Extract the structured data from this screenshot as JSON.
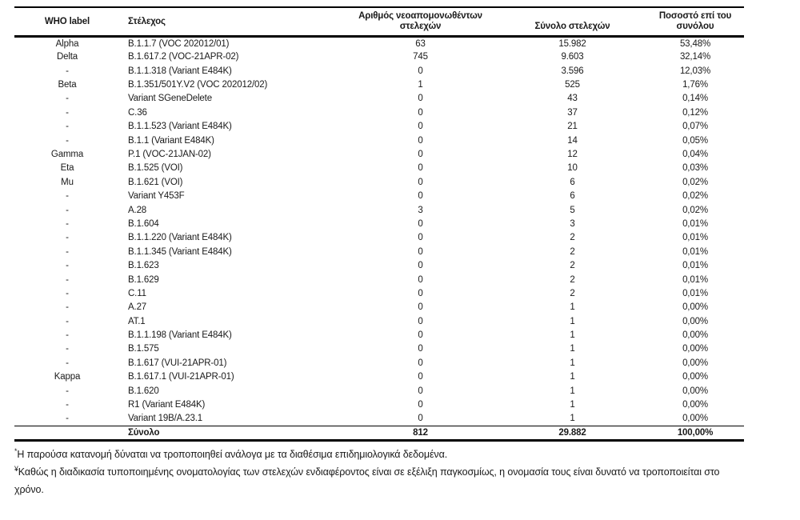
{
  "table": {
    "headers": [
      "WHO label",
      "Στέλεχος",
      "Αριθμός νεοαπομονωθέντων στελεχών",
      "Σύνολο στελεχών",
      "Ποσοστό επί του συνόλου"
    ],
    "rows": [
      [
        "Alpha",
        "B.1.1.7 (VOC 202012/01)",
        "63",
        "15.982",
        "53,48%"
      ],
      [
        "Delta",
        "B.1.617.2 (VOC-21APR-02)",
        "745",
        "9.603",
        "32,14%"
      ],
      [
        "-",
        "B.1.1.318 (Variant E484K)",
        "0",
        "3.596",
        "12,03%"
      ],
      [
        "Beta",
        "B.1.351/501Y.V2 (VOC 202012/02)",
        "1",
        "525",
        "1,76%"
      ],
      [
        "-",
        "Variant SGeneDelete",
        "0",
        "43",
        "0,14%"
      ],
      [
        "-",
        "C.36",
        "0",
        "37",
        "0,12%"
      ],
      [
        "-",
        "B.1.1.523 (Variant E484K)",
        "0",
        "21",
        "0,07%"
      ],
      [
        "-",
        "B.1.1 (Variant E484K)",
        "0",
        "14",
        "0,05%"
      ],
      [
        "Gamma",
        "P.1 (VOC-21JAN-02)",
        "0",
        "12",
        "0,04%"
      ],
      [
        "Eta",
        "B.1.525 (VOI)",
        "0",
        "10",
        "0,03%"
      ],
      [
        "Mu",
        "B.1.621 (VOI)",
        "0",
        "6",
        "0,02%"
      ],
      [
        "-",
        "Variant Y453F",
        "0",
        "6",
        "0,02%"
      ],
      [
        "-",
        "A.28",
        "3",
        "5",
        "0,02%"
      ],
      [
        "-",
        "B.1.604",
        "0",
        "3",
        "0,01%"
      ],
      [
        "-",
        "B.1.1.220 (Variant E484K)",
        "0",
        "2",
        "0,01%"
      ],
      [
        "-",
        "B.1.1.345 (Variant E484K)",
        "0",
        "2",
        "0,01%"
      ],
      [
        "-",
        "B.1.623",
        "0",
        "2",
        "0,01%"
      ],
      [
        "-",
        "B.1.629",
        "0",
        "2",
        "0,01%"
      ],
      [
        "-",
        "C.11",
        "0",
        "2",
        "0,01%"
      ],
      [
        "-",
        "A.27",
        "0",
        "1",
        "0,00%"
      ],
      [
        "-",
        "AT.1",
        "0",
        "1",
        "0,00%"
      ],
      [
        "-",
        "B.1.1.198 (Variant E484K)",
        "0",
        "1",
        "0,00%"
      ],
      [
        "-",
        "B.1.575",
        "0",
        "1",
        "0,00%"
      ],
      [
        "-",
        "B.1.617 (VUI-21APR-01)",
        "0",
        "1",
        "0,00%"
      ],
      [
        "Kappa",
        "B.1.617.1 (VUI-21APR-01)",
        "0",
        "1",
        "0,00%"
      ],
      [
        "-",
        "B.1.620",
        "0",
        "1",
        "0,00%"
      ],
      [
        "-",
        "R1 (Variant E484K)",
        "0",
        "1",
        "0,00%"
      ],
      [
        "-",
        "Variant 19B/A.23.1",
        "0",
        "1",
        "0,00%"
      ]
    ],
    "total_row": {
      "label": "Σύνολο",
      "new_isolates": "812",
      "total_strains": "29.882",
      "percentage": "100,00%"
    }
  },
  "footnotes": [
    {
      "marker": "*",
      "text": "Η παρούσα κατανομή δύναται να τροποποιηθεί ανάλογα με τα διαθέσιμα επιδημιολογικά δεδομένα."
    },
    {
      "marker": "¥",
      "text": "Καθώς η διαδικασία τυποποιημένης ονοματολογίας των στελεχών ενδιαφέροντος είναι σε εξέλιξη παγκοσμίως, η ονομασία τους είναι δυνατό να τροποποιείται στο χρόνο."
    }
  ]
}
